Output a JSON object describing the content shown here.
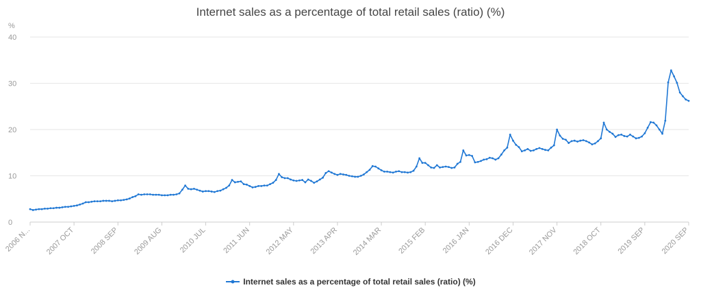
{
  "chart_data": {
    "type": "line",
    "title": "Internet sales as a percentage of total retail sales (ratio) (%)",
    "y_unit": "%",
    "ylim": [
      0,
      40
    ],
    "y_ticks": [
      "0",
      "10",
      "20",
      "30",
      "40"
    ],
    "x_tick_labels": [
      "2006 N...",
      "2007 OCT",
      "2008 SEP",
      "2009 AUG",
      "2010 JUL",
      "2011 JUN",
      "2012 MAY",
      "2013 APR",
      "2014 MAR",
      "2015 FEB",
      "2016 JAN",
      "2016 DEC",
      "2017 NOV",
      "2018 OCT",
      "2019 SEP",
      "2020 SEP"
    ],
    "x_start": "2006-11",
    "x_end": "2020-09",
    "grid": true,
    "legend_position": "bottom",
    "colors": {
      "series": "#1f77d4",
      "grid": "#e6e6e6",
      "axis": "#cccccc"
    },
    "series": [
      {
        "name": "Internet sales as a percentage of total retail sales (ratio) (%)",
        "values": [
          2.8,
          2.6,
          2.7,
          2.8,
          2.8,
          2.9,
          2.9,
          3.0,
          3.0,
          3.1,
          3.1,
          3.2,
          3.3,
          3.3,
          3.4,
          3.5,
          3.6,
          3.8,
          4.0,
          4.3,
          4.3,
          4.4,
          4.5,
          4.5,
          4.5,
          4.6,
          4.6,
          4.6,
          4.5,
          4.6,
          4.7,
          4.7,
          4.8,
          4.9,
          5.1,
          5.4,
          5.6,
          6.0,
          5.9,
          6.0,
          6.0,
          6.0,
          5.9,
          5.9,
          5.9,
          5.8,
          5.8,
          5.8,
          5.9,
          5.9,
          6.0,
          6.2,
          7.0,
          7.9,
          7.2,
          7.1,
          7.2,
          7.0,
          6.8,
          6.6,
          6.7,
          6.7,
          6.6,
          6.5,
          6.7,
          6.8,
          7.1,
          7.4,
          7.9,
          9.1,
          8.6,
          8.7,
          8.8,
          8.2,
          8.1,
          7.8,
          7.5,
          7.6,
          7.8,
          7.8,
          7.9,
          7.9,
          8.2,
          8.5,
          9.1,
          10.4,
          9.7,
          9.5,
          9.5,
          9.2,
          9.0,
          8.9,
          9.0,
          9.1,
          8.6,
          9.2,
          8.9,
          8.5,
          8.8,
          9.2,
          9.6,
          10.6,
          11.0,
          10.7,
          10.4,
          10.2,
          10.4,
          10.3,
          10.2,
          10.0,
          9.9,
          9.8,
          9.8,
          10.0,
          10.3,
          10.8,
          11.3,
          12.1,
          12.0,
          11.6,
          11.2,
          10.9,
          10.9,
          10.8,
          10.7,
          10.9,
          11.0,
          10.8,
          10.8,
          10.7,
          10.8,
          11.1,
          12.0,
          13.8,
          12.8,
          12.8,
          12.3,
          11.8,
          11.7,
          12.3,
          11.8,
          11.9,
          12.0,
          11.9,
          11.7,
          11.8,
          12.6,
          13.0,
          15.5,
          14.4,
          14.5,
          14.3,
          12.9,
          13.0,
          13.2,
          13.5,
          13.6,
          13.9,
          13.8,
          13.5,
          13.8,
          14.6,
          15.5,
          16.1,
          18.9,
          17.6,
          16.7,
          16.2,
          15.3,
          15.5,
          15.8,
          15.4,
          15.5,
          15.8,
          16.0,
          15.8,
          15.6,
          15.5,
          16.1,
          16.6,
          20.0,
          18.7,
          18.0,
          17.8,
          17.1,
          17.5,
          17.6,
          17.4,
          17.6,
          17.7,
          17.5,
          17.2,
          16.8,
          17.0,
          17.5,
          18.1,
          21.5,
          20.0,
          19.5,
          19.1,
          18.4,
          18.8,
          18.9,
          18.6,
          18.5,
          18.9,
          18.5,
          18.1,
          18.2,
          18.5,
          19.2,
          20.4,
          21.6,
          21.5,
          20.9,
          20.0,
          19.1,
          21.9,
          30.2,
          32.8,
          31.5,
          30.1,
          28.0,
          27.2,
          26.5,
          26.2
        ]
      }
    ]
  }
}
